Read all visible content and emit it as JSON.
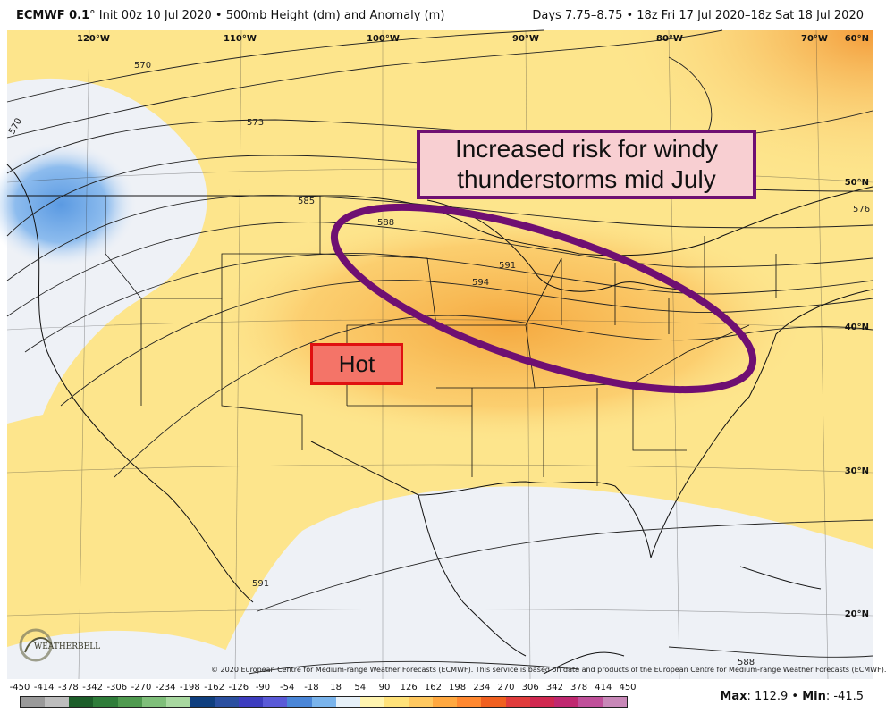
{
  "header": {
    "model": "ECMWF 0.1",
    "init": "° Init 00z 10 Jul 2020 • 500mb Height (dm) and Anomaly (m)",
    "valid": "Days 7.75–8.75 • 18z Fri 17 Jul 2020–18z Sat 18 Jul 2020"
  },
  "grid": {
    "longitudes": [
      "120°W",
      "110°W",
      "100°W",
      "90°W",
      "80°W",
      "70°W"
    ],
    "latitudes": [
      "60°N",
      "50°N",
      "40°N",
      "30°N",
      "20°N"
    ]
  },
  "contour_labels": [
    "570",
    "573",
    "585",
    "588",
    "591",
    "594",
    "576",
    "591",
    "588",
    "570"
  ],
  "annotations": {
    "risk": "Increased risk for windy thunderstorms mid July",
    "hot": "Hot"
  },
  "logo_text": "WEATHERBELL",
  "copyright": "© 2020 European Centre for Medium-range Weather Forecasts (ECMWF). This service is based on data and products of the European Centre for Medium-range Weather Forecasts (ECMWF).",
  "colorbar": {
    "labels": [
      "-450",
      "-414",
      "-378",
      "-342",
      "-306",
      "-270",
      "-234",
      "-198",
      "-162",
      "-126",
      "-90",
      "-54",
      "-18",
      "18",
      "54",
      "90",
      "126",
      "162",
      "198",
      "234",
      "270",
      "306",
      "342",
      "378",
      "414",
      "450"
    ],
    "colors": [
      "#9a9a9a",
      "#bdbdbd",
      "#1d5e2a",
      "#2f7d3a",
      "#4f9a4f",
      "#7fbf7a",
      "#a8d8a0",
      "#0f3f7f",
      "#2a4fa0",
      "#3d3dbf",
      "#5a5ad8",
      "#4a86d8",
      "#7ab4ec",
      "#e6f0f8",
      "#fff4b0",
      "#ffe27a",
      "#ffc860",
      "#ffa840",
      "#ff8830",
      "#f06020",
      "#e03c3c",
      "#d02850",
      "#c02870",
      "#c0509a",
      "#c888b8"
    ]
  },
  "stats": {
    "max_label": "Max",
    "max": "112.9",
    "min_label": "Min",
    "min": "-41.5"
  },
  "colors": {
    "anomaly_low": "#7aaee8",
    "anomaly_high": "#f6a43c",
    "risk_ring": "#6f0f72"
  }
}
